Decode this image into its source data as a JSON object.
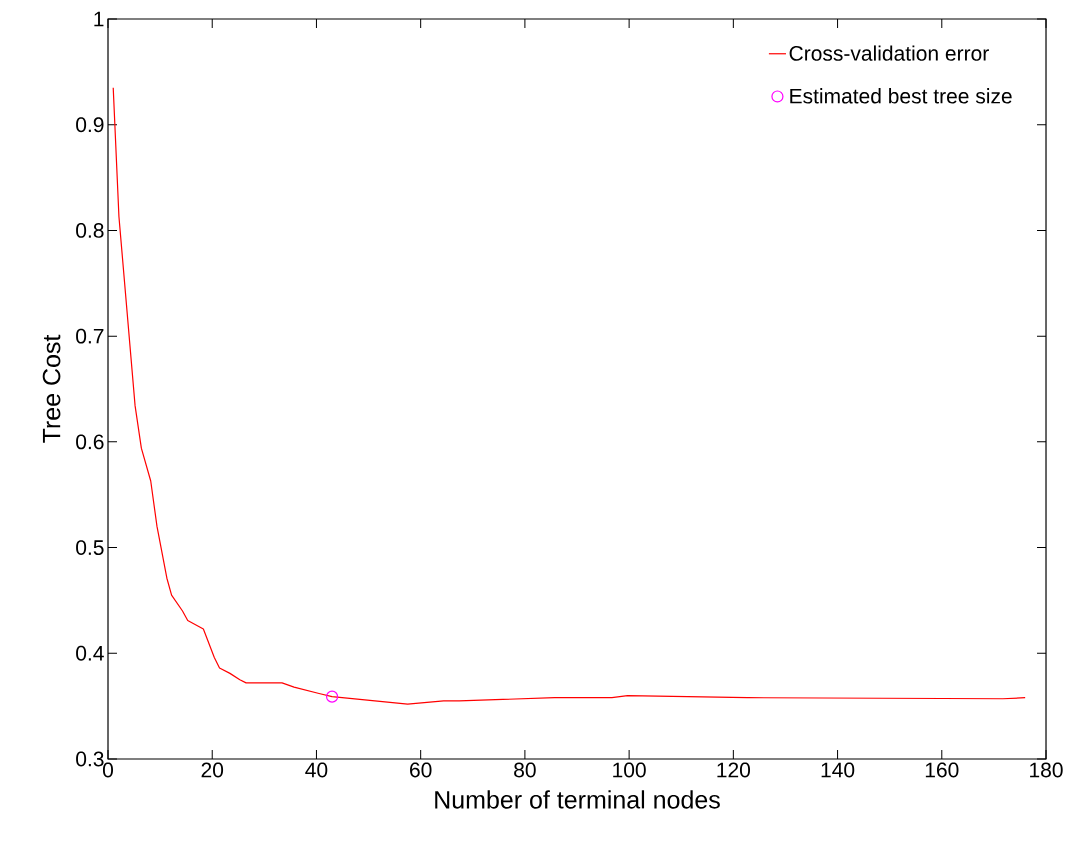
{
  "chart_data": {
    "type": "line",
    "xlabel": "Number of terminal nodes",
    "ylabel": "Tree Cost",
    "xlim": [
      0,
      180
    ],
    "ylim": [
      0.3,
      1
    ],
    "xticks": [
      0,
      20,
      40,
      60,
      80,
      100,
      120,
      140,
      160,
      180
    ],
    "yticks": [
      0.3,
      0.4,
      0.5,
      0.6,
      0.7,
      0.8,
      0.9,
      1
    ],
    "legend": "top right",
    "grid": false,
    "series": [
      {
        "name": "Cross-validation error",
        "color": "#ff0000",
        "marker": "none",
        "x": [
          1,
          2.1,
          5.2,
          6.4,
          8.2,
          9.4,
          11.3,
          12.2,
          14.3,
          15.3,
          18.3,
          20.4,
          21.4,
          23.4,
          25.3,
          26.5,
          33.4,
          35.7,
          40.5,
          43,
          57.5,
          64.4,
          67.4,
          85.7,
          96.7,
          99.7,
          122.7,
          171.7,
          176
        ],
        "values": [
          0.935,
          0.813,
          0.634,
          0.594,
          0.563,
          0.52,
          0.471,
          0.455,
          0.44,
          0.431,
          0.423,
          0.396,
          0.386,
          0.381,
          0.375,
          0.372,
          0.372,
          0.368,
          0.362,
          0.359,
          0.352,
          0.355,
          0.355,
          0.358,
          0.358,
          0.36,
          0.358,
          0.357,
          0.358
        ]
      },
      {
        "name": "Estimated best tree size",
        "type": "scatter",
        "color": "#ff00ff",
        "marker": "circle",
        "x": [
          43
        ],
        "values": [
          0.359
        ]
      }
    ]
  }
}
